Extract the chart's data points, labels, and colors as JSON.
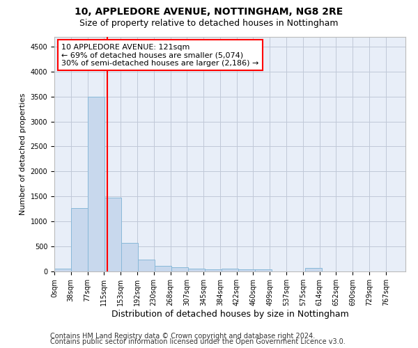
{
  "title1": "10, APPLEDORE AVENUE, NOTTINGHAM, NG8 2RE",
  "title2": "Size of property relative to detached houses in Nottingham",
  "xlabel": "Distribution of detached houses by size in Nottingham",
  "ylabel": "Number of detached properties",
  "bar_left_edges": [
    0,
    38,
    77,
    115,
    153,
    192,
    230,
    268,
    307,
    345,
    384,
    422,
    460,
    499,
    537,
    575,
    614,
    652,
    690,
    729
  ],
  "bar_heights": [
    50,
    1270,
    3500,
    1480,
    570,
    240,
    115,
    85,
    55,
    45,
    55,
    40,
    40,
    0,
    0,
    65,
    0,
    0,
    0,
    0
  ],
  "bin_width": 38,
  "bar_color": "#c8d8ed",
  "bar_edgecolor": "#88b8d8",
  "grid_color": "#c0c8d8",
  "bg_color": "#e8eef8",
  "vline_x": 121,
  "vline_color": "red",
  "annotation_line1": "10 APPLEDORE AVENUE: 121sqm",
  "annotation_line2": "← 69% of detached houses are smaller (5,074)",
  "annotation_line3": "30% of semi-detached houses are larger (2,186) →",
  "annotation_box_color": "red",
  "ylim": [
    0,
    4700
  ],
  "yticks": [
    0,
    500,
    1000,
    1500,
    2000,
    2500,
    3000,
    3500,
    4000,
    4500
  ],
  "xtick_labels": [
    "0sqm",
    "38sqm",
    "77sqm",
    "115sqm",
    "153sqm",
    "192sqm",
    "230sqm",
    "268sqm",
    "307sqm",
    "345sqm",
    "384sqm",
    "422sqm",
    "460sqm",
    "499sqm",
    "537sqm",
    "575sqm",
    "614sqm",
    "652sqm",
    "690sqm",
    "729sqm",
    "767sqm"
  ],
  "footer1": "Contains HM Land Registry data © Crown copyright and database right 2024.",
  "footer2": "Contains public sector information licensed under the Open Government Licence v3.0.",
  "title1_fontsize": 10,
  "title2_fontsize": 9,
  "xlabel_fontsize": 9,
  "ylabel_fontsize": 8,
  "tick_fontsize": 7,
  "footer_fontsize": 7,
  "annotation_fontsize": 8
}
